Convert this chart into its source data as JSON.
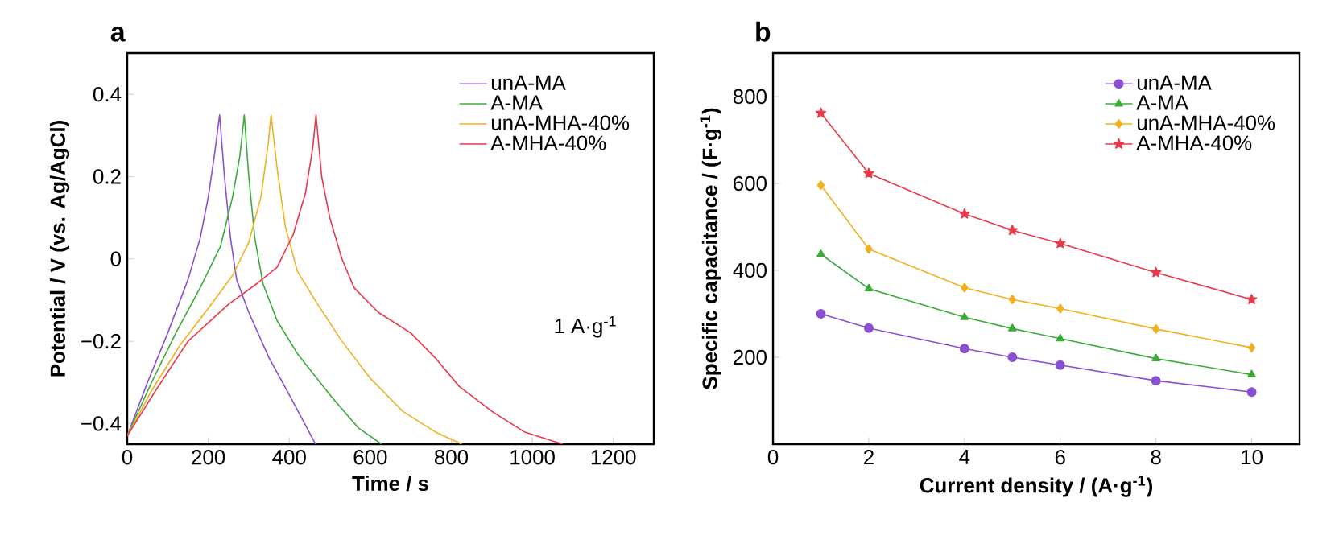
{
  "chart_data": [
    {
      "type": "line",
      "title": "a",
      "xlabel": "Time / s",
      "ylabel": "Potential / V (vs. Ag/AgCl)",
      "xlim": [
        0,
        1300
      ],
      "ylim": [
        -0.45,
        0.5
      ],
      "xticks": [
        0,
        200,
        400,
        600,
        800,
        1000,
        1200
      ],
      "yticks": [
        {
          "value": -0.4,
          "label": "−0.4"
        },
        {
          "value": -0.2,
          "label": "−0.2"
        },
        0,
        0.2,
        0.4
      ],
      "legend": "top right",
      "annotations": [
        "1 A·g$^{-1}$"
      ],
      "series": [
        {
          "name": "unA-MA",
          "color": "#8b4fd2",
          "x": [
            0,
            50,
            100,
            150,
            180,
            200,
            215,
            228,
            240,
            255,
            270,
            300,
            350,
            400,
            465
          ],
          "values": [
            -0.43,
            -0.3,
            -0.18,
            -0.05,
            0.05,
            0.15,
            0.25,
            0.35,
            0.2,
            0.05,
            -0.05,
            -0.13,
            -0.24,
            -0.33,
            -0.45
          ]
        },
        {
          "name": "A-MA",
          "color": "#3aab3a",
          "x": [
            0,
            60,
            120,
            180,
            230,
            260,
            278,
            289,
            300,
            315,
            335,
            370,
            420,
            500,
            570,
            628
          ],
          "values": [
            -0.43,
            -0.3,
            -0.18,
            -0.07,
            0.03,
            0.15,
            0.25,
            0.35,
            0.2,
            0.05,
            -0.06,
            -0.15,
            -0.23,
            -0.33,
            -0.41,
            -0.45
          ]
        },
        {
          "name": "unA-MHA-40%",
          "color": "#f0b020",
          "x": [
            0,
            60,
            130,
            200,
            260,
            300,
            330,
            348,
            355,
            370,
            390,
            420,
            470,
            530,
            600,
            680,
            760,
            826
          ],
          "values": [
            -0.43,
            -0.32,
            -0.21,
            -0.12,
            -0.04,
            0.04,
            0.15,
            0.28,
            0.35,
            0.22,
            0.08,
            -0.03,
            -0.11,
            -0.2,
            -0.29,
            -0.37,
            -0.42,
            -0.45
          ]
        },
        {
          "name": "A-MHA-40%",
          "color": "#e8394a",
          "x": [
            0,
            70,
            150,
            250,
            320,
            370,
            410,
            440,
            458,
            466,
            480,
            500,
            530,
            560,
            620,
            700,
            760,
            820,
            900,
            980,
            1075
          ],
          "values": [
            -0.43,
            -0.32,
            -0.2,
            -0.11,
            -0.06,
            -0.02,
            0.06,
            0.16,
            0.27,
            0.35,
            0.2,
            0.1,
            0,
            -0.07,
            -0.13,
            -0.18,
            -0.24,
            -0.31,
            -0.37,
            -0.42,
            -0.45
          ]
        }
      ]
    },
    {
      "type": "line",
      "title": "b",
      "xlabel": "Current density / (A·g$^{-1}$)",
      "ylabel": "Specific capacitance / (F·g$^{-1}$)",
      "xlim": [
        0,
        11
      ],
      "ylim": [
        0,
        900
      ],
      "xticks": [
        0,
        2,
        4,
        6,
        8,
        10
      ],
      "yticks": [
        200,
        400,
        600,
        800
      ],
      "legend": "top right",
      "x": [
        1,
        2,
        4,
        5,
        6,
        8,
        10
      ],
      "series": [
        {
          "name": "unA-MA",
          "color": "#8b4fd2",
          "marker": "circle",
          "values": [
            300,
            267,
            220,
            200,
            182,
            146,
            120
          ]
        },
        {
          "name": "A-MA",
          "color": "#3aab3a",
          "marker": "triangle",
          "values": [
            437,
            358,
            292,
            266,
            243,
            197,
            160
          ]
        },
        {
          "name": "unA-MHA-40%",
          "color": "#f0b020",
          "marker": "diamond",
          "values": [
            596,
            449,
            360,
            333,
            312,
            265,
            222
          ]
        },
        {
          "name": "A-MHA-40%",
          "color": "#e8394a",
          "marker": "star",
          "values": [
            762,
            623,
            530,
            492,
            462,
            395,
            333
          ]
        }
      ]
    }
  ]
}
